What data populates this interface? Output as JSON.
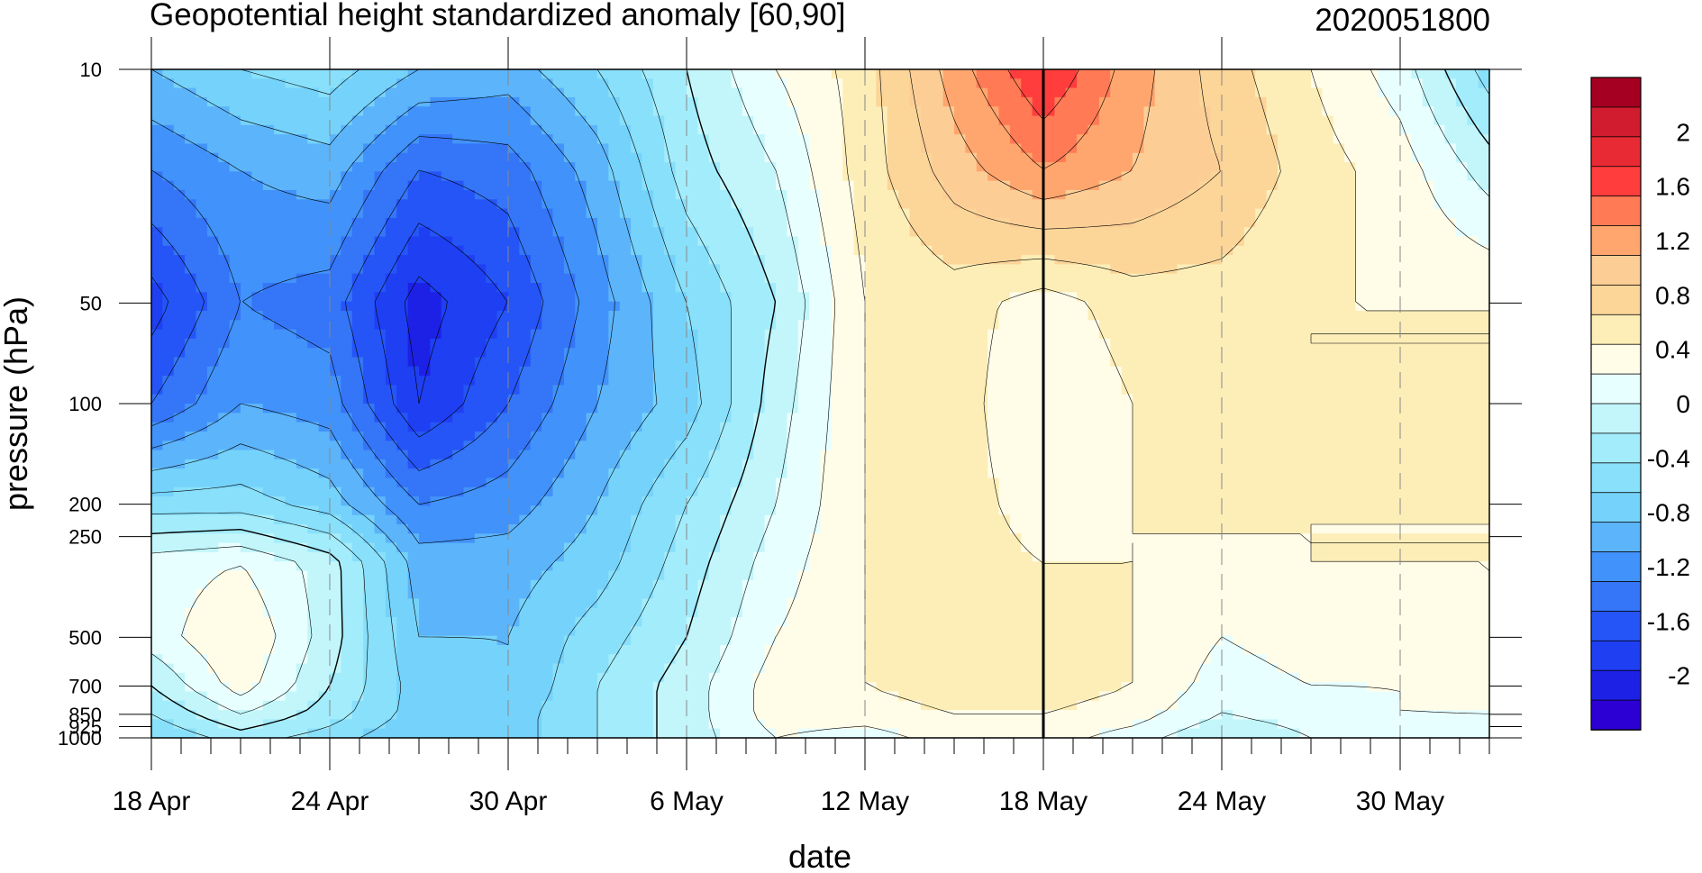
{
  "chart_data": {
    "type": "heatmap",
    "title": "Geopotential height standardized anomaly [60,90]",
    "date_stamp": "2020051800",
    "xlabel": "date",
    "ylabel": "pressure (hPa)",
    "x_tick_labels": [
      "18 Apr",
      "24 Apr",
      "30 Apr",
      "6 May",
      "12 May",
      "18 May",
      "24 May",
      "30 May"
    ],
    "x_tick_days": [
      0,
      6,
      12,
      18,
      24,
      30,
      36,
      42
    ],
    "x_range_days": [
      0,
      45
    ],
    "y_tick_labels": [
      "10",
      "50",
      "100",
      "200",
      "250",
      "500",
      "700",
      "850",
      "925",
      "1000"
    ],
    "y_levels": [
      10,
      50,
      100,
      200,
      250,
      500,
      700,
      850,
      925,
      1000
    ],
    "y_scale": "log",
    "y_range": [
      1000,
      10
    ],
    "current_date_marker": "18 May",
    "colorbar": {
      "labels": [
        "2",
        "1.6",
        "1.2",
        "0.8",
        "0.4",
        "0",
        "-0.4",
        "-0.8",
        "-1.2",
        "-1.6",
        "-2"
      ],
      "label_values": [
        2,
        1.6,
        1.2,
        0.8,
        0.4,
        0,
        -0.4,
        -0.8,
        -1.2,
        -1.6,
        -2
      ],
      "range": [
        -2.4,
        2.4
      ],
      "step": 0.2,
      "colors_top_to_bottom": [
        "#a50021",
        "#d01c2e",
        "#e82a35",
        "#ff3d3d",
        "#ff7a55",
        "#ffa66e",
        "#fcce96",
        "#fcd598",
        "#fdeeb8",
        "#fffce8",
        "#e8ffff",
        "#c2f6fb",
        "#a3ecfb",
        "#89e0fb",
        "#75d3fb",
        "#5cb4fb",
        "#4192fa",
        "#3575f7",
        "#2555f7",
        "#1f3ff2",
        "#1d21e6",
        "#2c00d4"
      ]
    },
    "series_grid": {
      "x_days": [
        0,
        3,
        6,
        9,
        12,
        15,
        18,
        21,
        24,
        27,
        30,
        33,
        36,
        39,
        42,
        45
      ],
      "levels": [
        10,
        20,
        50,
        100,
        200,
        300,
        500,
        700,
        850,
        1000
      ],
      "values": [
        [
          -0.6,
          -0.4,
          -0.3,
          -0.6,
          -0.7,
          -0.4,
          0.0,
          0.4,
          0.7,
          1.3,
          1.8,
          1.3,
          0.9,
          0.6,
          0.3,
          -0.3
        ],
        [
          -1.0,
          -0.8,
          -0.7,
          -1.2,
          -1.1,
          -0.7,
          -0.1,
          0.2,
          0.7,
          1.1,
          1.4,
          1.2,
          1.0,
          0.7,
          0.5,
          0.1
        ],
        [
          -1.5,
          -1.0,
          -1.1,
          -1.7,
          -1.4,
          -0.9,
          -0.4,
          0.0,
          0.6,
          0.7,
          0.5,
          0.7,
          0.7,
          0.6,
          0.6,
          0.6
        ],
        [
          -1.2,
          -0.8,
          -0.9,
          -1.6,
          -1.2,
          -0.8,
          -0.5,
          0.1,
          0.6,
          0.7,
          0.4,
          0.6,
          0.7,
          0.6,
          0.6,
          0.6
        ],
        [
          -0.3,
          -0.3,
          -0.5,
          -1.0,
          -0.9,
          -0.6,
          -0.2,
          0.2,
          0.6,
          0.7,
          0.5,
          0.6,
          0.7,
          0.6,
          0.6,
          0.6
        ],
        [
          0.3,
          0.4,
          0.1,
          -0.7,
          -0.7,
          -0.5,
          -0.1,
          0.3,
          0.6,
          0.7,
          0.6,
          0.6,
          0.5,
          0.6,
          0.6,
          0.6
        ],
        [
          0.3,
          0.6,
          0.1,
          -0.6,
          -0.6,
          -0.3,
          0.0,
          0.4,
          0.6,
          0.7,
          0.7,
          0.6,
          0.4,
          0.5,
          0.5,
          0.6
        ],
        [
          0.0,
          0.5,
          0.0,
          -0.5,
          -0.6,
          -0.2,
          0.1,
          0.5,
          0.6,
          0.7,
          0.7,
          0.6,
          0.3,
          0.4,
          0.4,
          0.5
        ],
        [
          -0.2,
          0.2,
          -0.1,
          -0.5,
          -0.5,
          -0.2,
          0.1,
          0.5,
          0.5,
          0.6,
          0.6,
          0.5,
          0.2,
          0.3,
          0.4,
          0.4
        ],
        [
          -0.4,
          -0.1,
          -0.3,
          -0.6,
          -0.5,
          -0.2,
          0.1,
          0.4,
          0.3,
          0.5,
          0.5,
          0.3,
          0.0,
          0.2,
          0.3,
          0.3
        ]
      ]
    }
  }
}
